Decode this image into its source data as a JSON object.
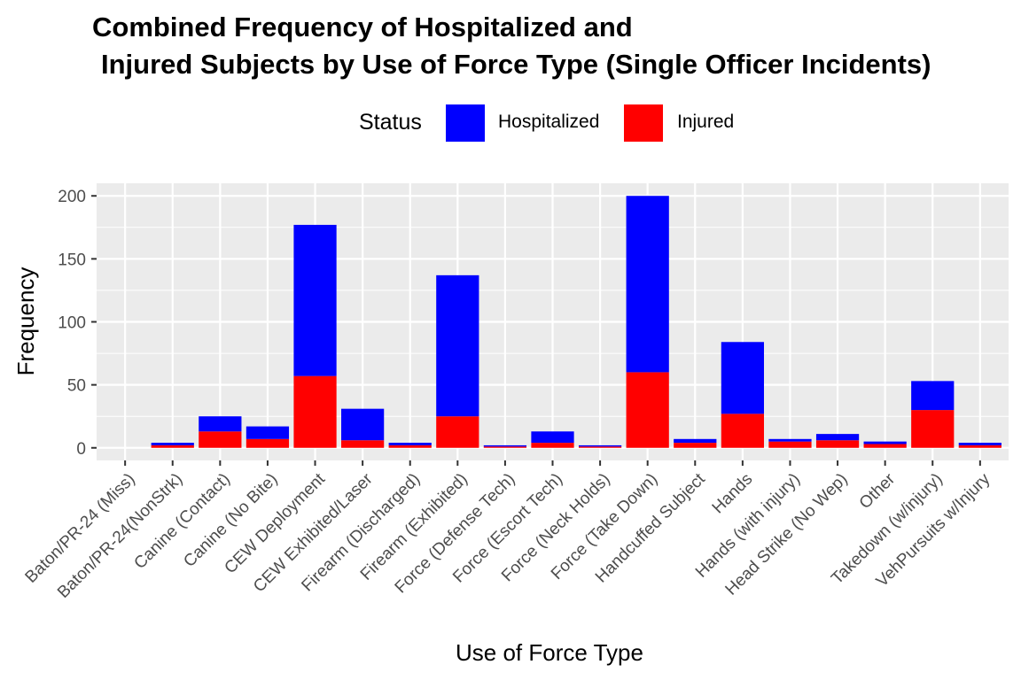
{
  "chart_data": {
    "type": "bar",
    "stacked": true,
    "title_line1": "Combined Frequency of Hospitalized and",
    "title_line2": "Injured Subjects by Use of Force Type (Single Officer Incidents)",
    "xlabel": "Use of Force Type",
    "ylabel": "Frequency",
    "ylim": [
      -10,
      210
    ],
    "y_ticks": [
      0,
      50,
      100,
      150,
      200
    ],
    "grid": true,
    "legend": {
      "title": "Status",
      "position": "top",
      "entries": [
        {
          "label": "Hospitalized",
          "color": "#0000FF"
        },
        {
          "label": "Injured",
          "color": "#FF0000"
        }
      ]
    },
    "categories": [
      "Baton/PR-24 (Miss)",
      "Baton/PR-24(NonStrk)",
      "Canine (Contact)",
      "Canine (No Bite)",
      "CEW Deployment",
      "CEW Exhibited/Laser",
      "Firearm (Discharged)",
      "Firearm (Exhibited)",
      "Force (Defense Tech)",
      "Force (Escort Tech)",
      "Force (Neck Holds)",
      "Force (Take Down)",
      "Handcuffed Subject",
      "Hands",
      "Hands (with injury)",
      "Head Strike (No Wep)",
      "Other",
      "Takedown (w/injury)",
      "VehPursuits w/Injury"
    ],
    "series": [
      {
        "name": "Injured",
        "color": "#FF0000",
        "values": [
          0,
          2,
          13,
          7,
          57,
          6,
          2,
          25,
          1,
          4,
          1,
          60,
          4,
          27,
          5,
          6,
          3,
          30,
          2
        ]
      },
      {
        "name": "Hospitalized",
        "color": "#0000FF",
        "values": [
          0,
          2,
          12,
          10,
          120,
          25,
          2,
          112,
          1,
          9,
          1,
          140,
          3,
          57,
          2,
          5,
          2,
          23,
          2
        ]
      }
    ]
  }
}
